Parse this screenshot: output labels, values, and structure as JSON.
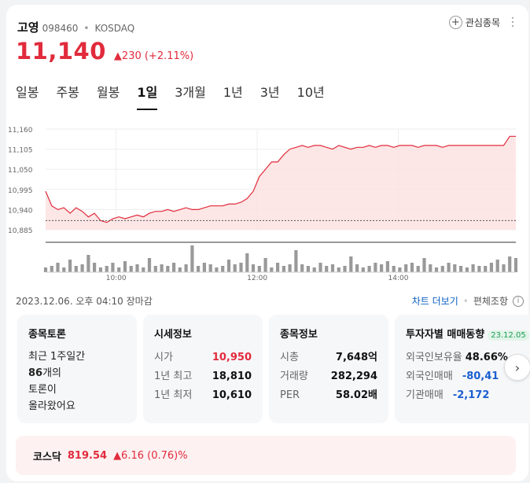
{
  "stock": {
    "name": "고영",
    "code": "098460",
    "market": "KOSDAQ",
    "price": "11,140",
    "change": "▲230 (+2.11%)",
    "watch_label": "관심종목"
  },
  "tabs": [
    "일봉",
    "주봉",
    "월봉",
    "1일",
    "3개월",
    "1년",
    "3년",
    "10년"
  ],
  "active_tab": "1일",
  "chart_data": {
    "type": "area",
    "y_ticks": [
      "11,160",
      "11,105",
      "11,050",
      "10,995",
      "10,940",
      "10,885"
    ],
    "ylim": [
      10885,
      11160
    ],
    "x_ticks": [
      "10:00",
      "12:00",
      "14:00"
    ],
    "prev_close": 10910,
    "prices": [
      10990,
      10950,
      10940,
      10945,
      10930,
      10945,
      10935,
      10920,
      10930,
      10910,
      10905,
      10915,
      10920,
      10915,
      10920,
      10925,
      10920,
      10930,
      10935,
      10935,
      10940,
      10935,
      10940,
      10945,
      10940,
      10940,
      10945,
      10950,
      10950,
      10950,
      10955,
      10955,
      10960,
      10970,
      10990,
      11030,
      11050,
      11070,
      11070,
      11090,
      11105,
      11110,
      11115,
      11110,
      11115,
      11115,
      11110,
      11105,
      11115,
      11110,
      11105,
      11110,
      11110,
      11115,
      11110,
      11115,
      11115,
      11110,
      11115,
      11115,
      11115,
      11110,
      11115,
      11115,
      11115,
      11110,
      11115,
      11115,
      11115,
      11115,
      11115,
      11115,
      11115,
      11115,
      11115,
      11115,
      11140,
      11140
    ],
    "volumes": [
      3,
      4,
      6,
      3,
      8,
      4,
      5,
      11,
      6,
      3,
      4,
      6,
      3,
      7,
      4,
      5,
      3,
      9,
      4,
      5,
      4,
      6,
      3,
      5,
      17,
      4,
      6,
      5,
      3,
      4,
      8,
      5,
      6,
      12,
      5,
      4,
      9,
      3,
      6,
      4,
      5,
      14,
      5,
      4,
      3,
      6,
      4,
      5,
      3,
      4,
      10,
      5,
      3,
      4,
      6,
      5,
      7,
      4,
      3,
      5,
      6,
      4,
      9,
      5,
      3,
      4,
      6,
      5,
      4,
      3,
      5,
      4,
      4,
      6,
      8,
      5,
      10,
      9
    ]
  },
  "status": "2023.12.06. 오후 04:10 장마감",
  "links": {
    "chart_more": "차트 더보기",
    "alt": "편체조항"
  },
  "discussion": {
    "title": "종목토론",
    "line1": "최근 1주일간",
    "count": "86",
    "line2": "개의",
    "line3": "토론이",
    "line4": "올라왔어요"
  },
  "market_info": {
    "title": "시세정보",
    "rows": [
      {
        "k": "시가",
        "v": "10,950"
      },
      {
        "k": "1년 최고",
        "v": "18,810"
      },
      {
        "k": "1년 최저",
        "v": "10,610"
      }
    ]
  },
  "stock_info": {
    "title": "종목정보",
    "rows": [
      {
        "k": "시총",
        "v": "7,648억"
      },
      {
        "k": "거래량",
        "v": "282,294"
      },
      {
        "k": "PER",
        "v": "58.02배"
      }
    ]
  },
  "investor": {
    "title": "투자자별 매매동향",
    "date": "23.12.05",
    "rows": [
      {
        "k": "외국인보유율",
        "v": "48.66%"
      },
      {
        "k": "외국인매매",
        "v": "-80,41"
      },
      {
        "k": "기관매매",
        "v": "-2,172"
      }
    ]
  },
  "kosdaq": {
    "name": "코스닥",
    "value": "819.54",
    "change": "▲6.16 (0.76)%"
  },
  "colors": {
    "up": "#e12b3c",
    "down": "#1a5fd0",
    "area": "#fde0e0"
  }
}
